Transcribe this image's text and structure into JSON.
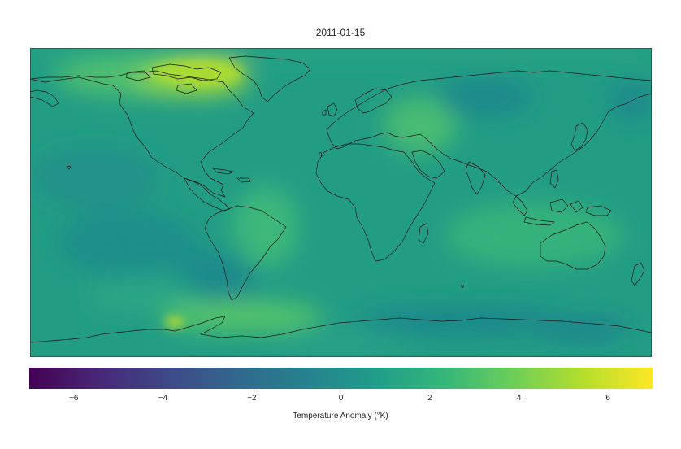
{
  "title": "2011-01-15",
  "colorbar": {
    "label": "Temperature Anomaly (°K)",
    "ticks": [
      "−6",
      "−4",
      "−2",
      "0",
      "2",
      "4",
      "6"
    ],
    "range": [
      -7,
      7
    ],
    "tick_values": [
      -6,
      -4,
      -2,
      0,
      2,
      4,
      6
    ],
    "colormap": "viridis",
    "colors": [
      "#440154",
      "#482878",
      "#3e4989",
      "#31688e",
      "#26828e",
      "#1f9e89",
      "#35b779",
      "#6ece58",
      "#b5de2b",
      "#fde725"
    ]
  },
  "map": {
    "projection": "equirectangular",
    "extent": [
      -180,
      180,
      -90,
      90
    ],
    "background_color": "#229d84",
    "coastline_color": "#1a1a1a",
    "anomaly_regions": [
      {
        "region": "Greenland / Baffin",
        "value": 4.5
      },
      {
        "region": "Northern Canada",
        "value": 3.0
      },
      {
        "region": "Middle East / Central Asia",
        "value": 2.8
      },
      {
        "region": "South America",
        "value": 2.0
      },
      {
        "region": "Antarctic Peninsula",
        "value": 3.5
      },
      {
        "region": "Southern Ocean",
        "value": 0.5
      },
      {
        "region": "Siberia",
        "value": 0.0
      }
    ]
  }
}
